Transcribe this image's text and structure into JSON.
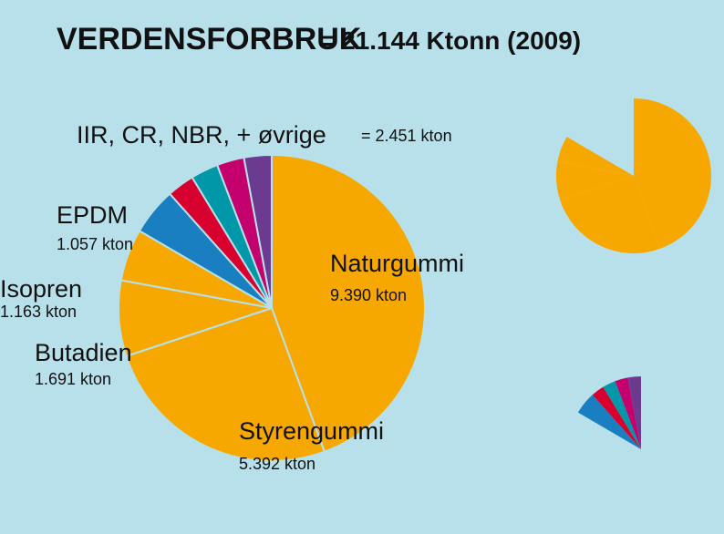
{
  "chart_data": {
    "type": "pie",
    "title": "VERDENSFORBRUK",
    "subtitle": "= 21.144 Ktonn (2009)",
    "categories": [
      "Naturgummi",
      "Styrengummi",
      "Butadien",
      "Isopren",
      "EPDM",
      null,
      null,
      null,
      null
    ],
    "values": [
      9390,
      5392,
      1691,
      1163,
      1057,
      610,
      615,
      610,
      616
    ],
    "value_labels": [
      "9.390 kton",
      "5.392 kton",
      "1.691 kton",
      "1.163 kton",
      "1.057 kton",
      null,
      null,
      null,
      null
    ],
    "colors": [
      "#f7a800",
      "#f7a800",
      "#f7a800",
      "#f7a800",
      "#1a7fc1",
      "#d8002f",
      "#0098a8",
      "#c4006f",
      "#6a3b8e"
    ],
    "group": {
      "label": "IIR, CR, NBR, + øvrige",
      "value": 2451,
      "value_label": "= 2.451 kton"
    }
  }
}
